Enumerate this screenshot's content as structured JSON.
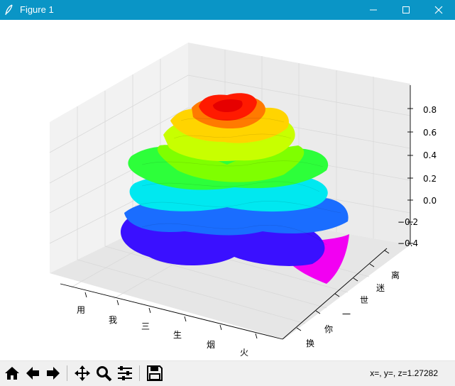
{
  "window": {
    "title": "Figure 1"
  },
  "chart_data": {
    "type": "3d-surface",
    "x_tick_labels": [
      "用",
      "我",
      "三",
      "生",
      "烟",
      "火"
    ],
    "y_tick_labels": [
      "换",
      "你",
      "一",
      "世",
      "迷",
      "离"
    ],
    "z_tick_labels": [
      "−0.4",
      "−0.2",
      "0.0",
      "0.2",
      "0.4",
      "0.6",
      "0.8"
    ],
    "z_ticks": [
      -0.4,
      -0.2,
      0.0,
      0.2,
      0.4,
      0.6,
      0.8
    ],
    "zlim": [
      -0.45,
      0.95
    ],
    "colormap": "hsv (rainbow, purple→blue→cyan→green→yellow→red by height)",
    "surface": "layered rose-shaped petal surface",
    "colors": {
      "top": "#ff0000",
      "upper": "#ffcc00",
      "middle": "#33ff00",
      "lower": "#00ffee",
      "base": "#2200ff",
      "outer": "#ff00ff"
    },
    "grid": true
  },
  "toolbar": {
    "buttons": [
      "home-icon",
      "back-icon",
      "forward-icon",
      "pan-icon",
      "zoom-icon",
      "configure-subplots-icon",
      "save-icon"
    ]
  },
  "status": {
    "coords": "x=, y=, z=1.27282"
  }
}
